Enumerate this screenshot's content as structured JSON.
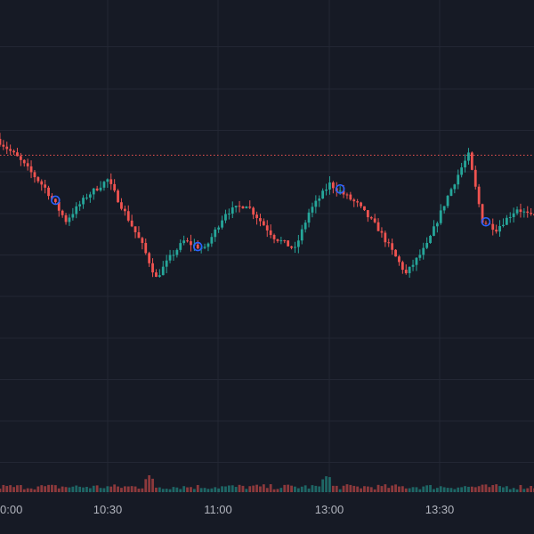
{
  "chart_data": {
    "type": "candlestick",
    "x_tick_labels": [
      "0:00",
      "10:30",
      "11:00",
      "13:00",
      "13:30"
    ],
    "y_range": [
      0,
      100
    ],
    "reference_line_value": 66.0,
    "colors": {
      "background": "#161a25",
      "grid": "#232734",
      "up": "#26a69a",
      "down": "#ef5350",
      "reference_line": "#ef5350",
      "marker": "#2962ff",
      "tick_text": "#b2b5be"
    },
    "path_keypoints": [
      [
        0,
        70
      ],
      [
        6,
        65.5
      ],
      [
        14,
        58
      ],
      [
        20,
        50
      ],
      [
        26,
        56
      ],
      [
        32,
        60
      ],
      [
        42,
        44
      ],
      [
        46,
        36
      ],
      [
        50,
        41
      ],
      [
        54,
        45
      ],
      [
        60,
        43
      ],
      [
        66,
        52
      ],
      [
        72,
        54
      ],
      [
        80,
        46
      ],
      [
        86,
        43
      ],
      [
        90,
        52
      ],
      [
        96,
        59
      ],
      [
        104,
        54
      ],
      [
        110,
        48
      ],
      [
        118,
        37
      ],
      [
        124,
        44
      ],
      [
        130,
        56
      ],
      [
        134,
        63
      ],
      [
        136,
        66
      ],
      [
        140,
        50
      ],
      [
        144,
        48
      ],
      [
        150,
        53
      ],
      [
        154,
        51
      ]
    ],
    "candle_count": 155,
    "markers_at_candles": [
      16,
      57,
      98,
      140
    ],
    "volume_spikes_at": [
      43,
      94
    ]
  }
}
